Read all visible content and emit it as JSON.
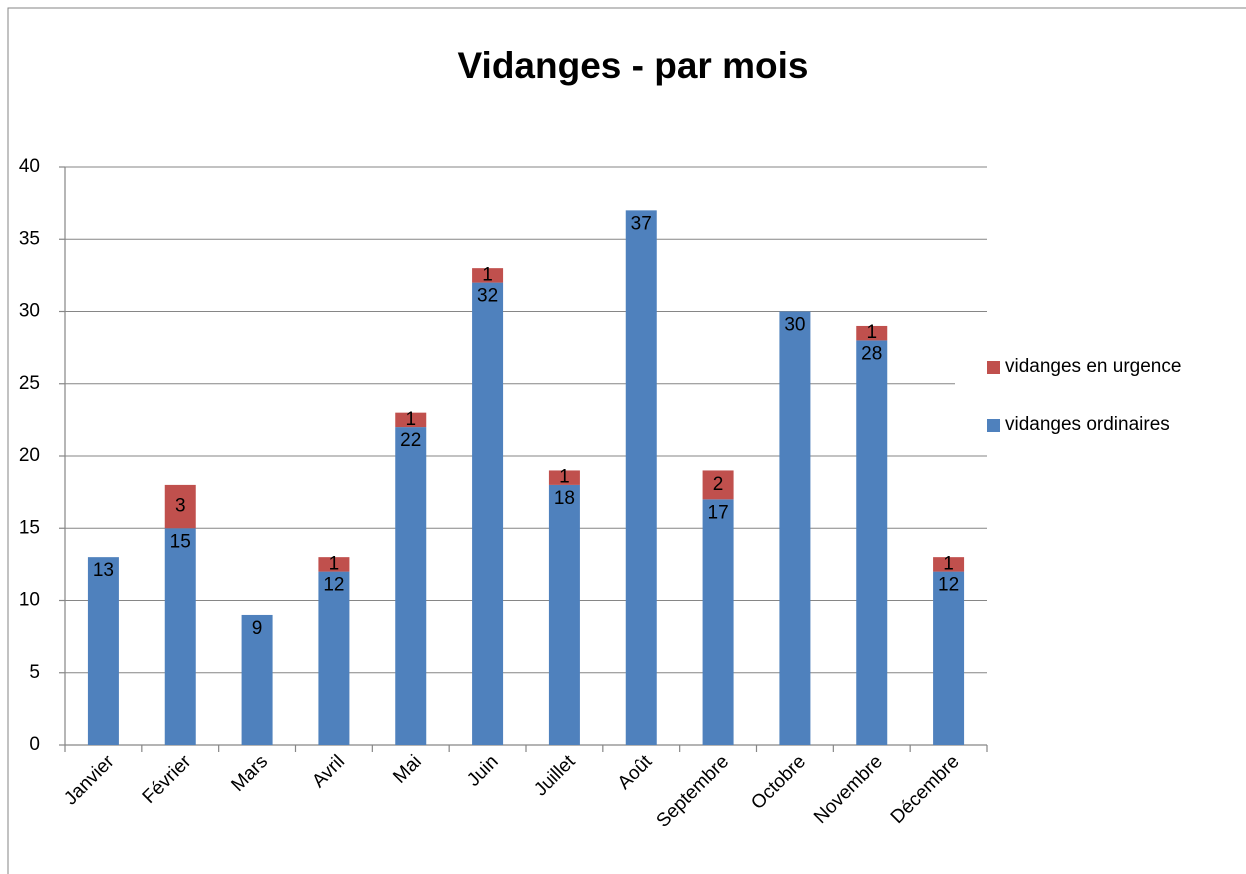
{
  "chart_data": {
    "type": "stacked_bar",
    "title": "Vidanges - par mois",
    "categories": [
      "Janvier",
      "Février",
      "Mars",
      "Avril",
      "Mai",
      "Juin",
      "Juillet",
      "Août",
      "Septembre",
      "Octobre",
      "Novembre",
      "Décembre"
    ],
    "series": [
      {
        "name": "vidanges ordinaires",
        "color": "#4f81bd",
        "values": [
          13,
          15,
          9,
          12,
          22,
          32,
          18,
          37,
          17,
          30,
          28,
          12
        ]
      },
      {
        "name": "vidanges en urgence",
        "color": "#c0504d",
        "values": [
          null,
          3,
          null,
          1,
          1,
          1,
          1,
          null,
          2,
          null,
          1,
          1
        ]
      }
    ],
    "ylim": [
      0,
      40
    ],
    "yticks": [
      0,
      5,
      10,
      15,
      20,
      25,
      30,
      35,
      40
    ],
    "grid": true,
    "legend": "right"
  }
}
